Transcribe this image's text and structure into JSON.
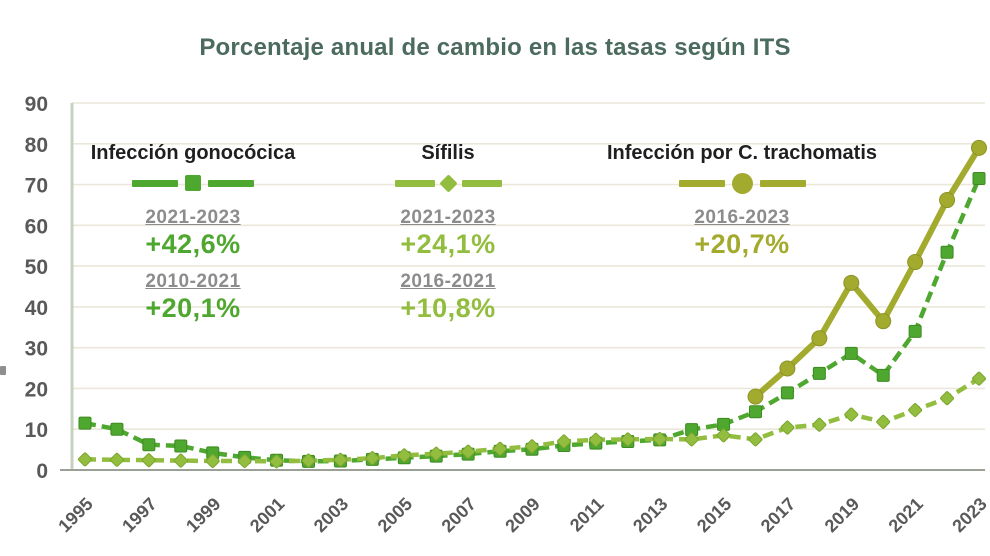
{
  "title": "Porcentaje anual de cambio en las tasas según ITS",
  "colors": {
    "title": "#4b6b5e",
    "axis_text": "#595959",
    "range_label": "#8c8c8c",
    "gridline": "#ece7db",
    "y_axis_line": "#c7d0c0",
    "x_axis_line": "#9aa096",
    "gonococcal": "#4ea72e",
    "syphilis": "#92bd3e",
    "trachomatis": "#a3ab2f"
  },
  "legend": [
    {
      "label": "Infección gonocócica",
      "color": "#4ea72e",
      "marker": "square",
      "periods": [
        {
          "range": "2021-2023",
          "pct": "+42,6%"
        },
        {
          "range": "2010-2021",
          "pct": "+20,1%"
        }
      ]
    },
    {
      "label": "Sífilis",
      "color": "#92bd3e",
      "marker": "diamond",
      "periods": [
        {
          "range": "2021-2023",
          "pct": "+24,1%"
        },
        {
          "range": "2016-2021",
          "pct": "+10,8%"
        }
      ]
    },
    {
      "label": "Infección por C. trachomatis",
      "color": "#a3ab2f",
      "marker": "circle",
      "periods": [
        {
          "range": "2016-2023",
          "pct": "+20,7%"
        }
      ]
    }
  ],
  "chart_data": {
    "type": "line",
    "title": "Porcentaje anual de cambio en las tasas según ITS",
    "xlabel": "",
    "ylabel": "",
    "ylim": [
      0,
      90
    ],
    "y_ticks": [
      0,
      10,
      20,
      30,
      40,
      50,
      60,
      70,
      80,
      90
    ],
    "x_tick_labels": [
      "1995",
      "1997",
      "1999",
      "2001",
      "2003",
      "2005",
      "2007",
      "2009",
      "2011",
      "2013",
      "2015",
      "2017",
      "2019",
      "2021",
      "2023"
    ],
    "grid": true,
    "legend_position": "top-inside",
    "x": [
      1995,
      1996,
      1997,
      1998,
      1999,
      2000,
      2001,
      2002,
      2003,
      2004,
      2005,
      2006,
      2007,
      2008,
      2009,
      2010,
      2011,
      2012,
      2013,
      2014,
      2015,
      2016,
      2017,
      2018,
      2019,
      2020,
      2021,
      2022,
      2023
    ],
    "series": [
      {
        "name": "Infección gonocócica",
        "marker": "square",
        "color": "#4ea72e",
        "marker_stroke": "#3d8a22",
        "dashed": true,
        "values": [
          11.5,
          10.0,
          6.2,
          5.9,
          4.2,
          3.1,
          2.4,
          2.1,
          2.2,
          2.6,
          3.0,
          3.4,
          3.9,
          4.6,
          5.1,
          6.0,
          6.6,
          7.0,
          7.4,
          9.9,
          11.2,
          14.3,
          18.9,
          23.7,
          28.6,
          23.2,
          34.0,
          53.4,
          71.5
        ]
      },
      {
        "name": "Sífilis",
        "marker": "diamond",
        "color": "#92bd3e",
        "marker_stroke": "#7aa62f",
        "dashed": true,
        "values": [
          2.6,
          2.5,
          2.4,
          2.3,
          2.2,
          2.2,
          2.1,
          2.3,
          2.5,
          2.9,
          3.6,
          4.0,
          4.5,
          5.2,
          5.8,
          7.0,
          7.4,
          7.5,
          7.6,
          7.5,
          8.5,
          7.5,
          10.4,
          11.1,
          13.6,
          11.8,
          14.7,
          17.6,
          22.4
        ]
      },
      {
        "name": "Infección por C. trachomatis",
        "marker": "circle",
        "color": "#a3ab2f",
        "marker_stroke": "#8c9326",
        "dashed": false,
        "values": [
          null,
          null,
          null,
          null,
          null,
          null,
          null,
          null,
          null,
          null,
          null,
          null,
          null,
          null,
          null,
          null,
          null,
          null,
          null,
          null,
          null,
          18.0,
          24.9,
          32.3,
          45.9,
          36.5,
          51.0,
          66.2,
          79.0
        ]
      }
    ],
    "annotations": [
      {
        "series": "Infección gonocócica",
        "periods": [
          {
            "range": "2021-2023",
            "change": "+42,6%"
          },
          {
            "range": "2010-2021",
            "change": "+20,1%"
          }
        ]
      },
      {
        "series": "Sífilis",
        "periods": [
          {
            "range": "2021-2023",
            "change": "+24,1%"
          },
          {
            "range": "2016-2021",
            "change": "+10,8%"
          }
        ]
      },
      {
        "series": "Infección por C. trachomatis",
        "periods": [
          {
            "range": "2016-2023",
            "change": "+20,7%"
          }
        ]
      }
    ]
  }
}
